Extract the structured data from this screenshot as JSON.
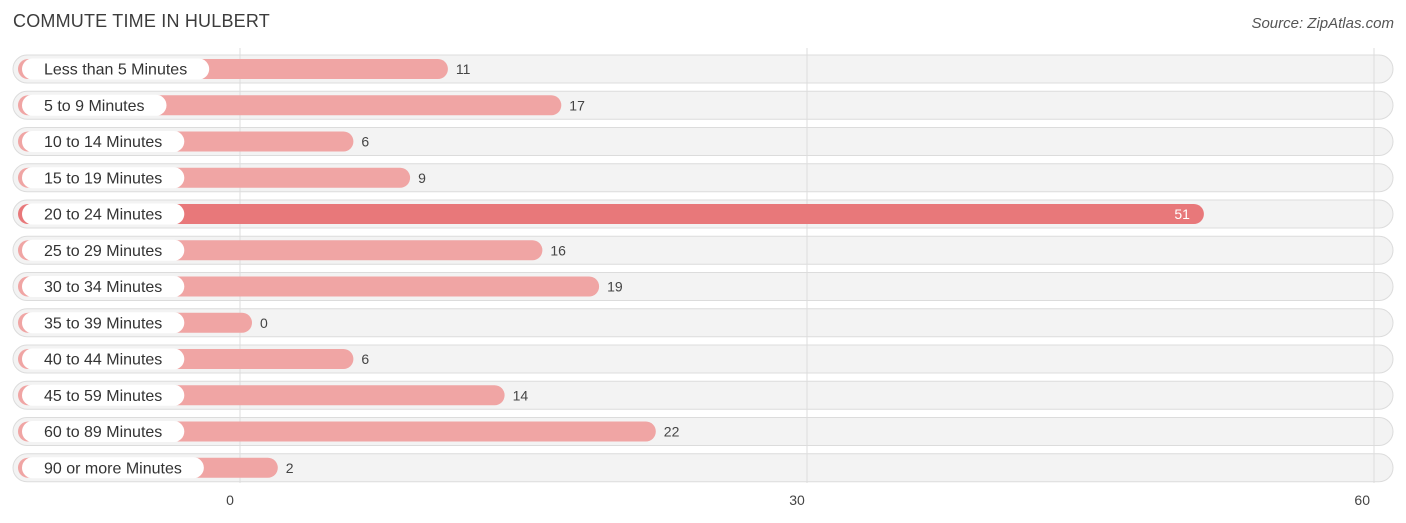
{
  "header": {
    "title": "COMMUTE TIME IN HULBERT",
    "source": "Source: ZipAtlas.com"
  },
  "colors": {
    "bar": "#f0a5a4",
    "bar_highlight": "#e8787a"
  },
  "chart_data": {
    "type": "bar",
    "orientation": "horizontal",
    "categories": [
      "Less than 5 Minutes",
      "5 to 9 Minutes",
      "10 to 14 Minutes",
      "15 to 19 Minutes",
      "20 to 24 Minutes",
      "25 to 29 Minutes",
      "30 to 34 Minutes",
      "35 to 39 Minutes",
      "40 to 44 Minutes",
      "45 to 59 Minutes",
      "60 to 89 Minutes",
      "90 or more Minutes"
    ],
    "values": [
      11,
      17,
      6,
      9,
      51,
      16,
      19,
      0,
      6,
      14,
      22,
      2
    ],
    "highlight_index": 4,
    "xlim": [
      0,
      60
    ],
    "xticks": [
      0,
      30,
      60
    ],
    "grid": true,
    "legend": false
  }
}
